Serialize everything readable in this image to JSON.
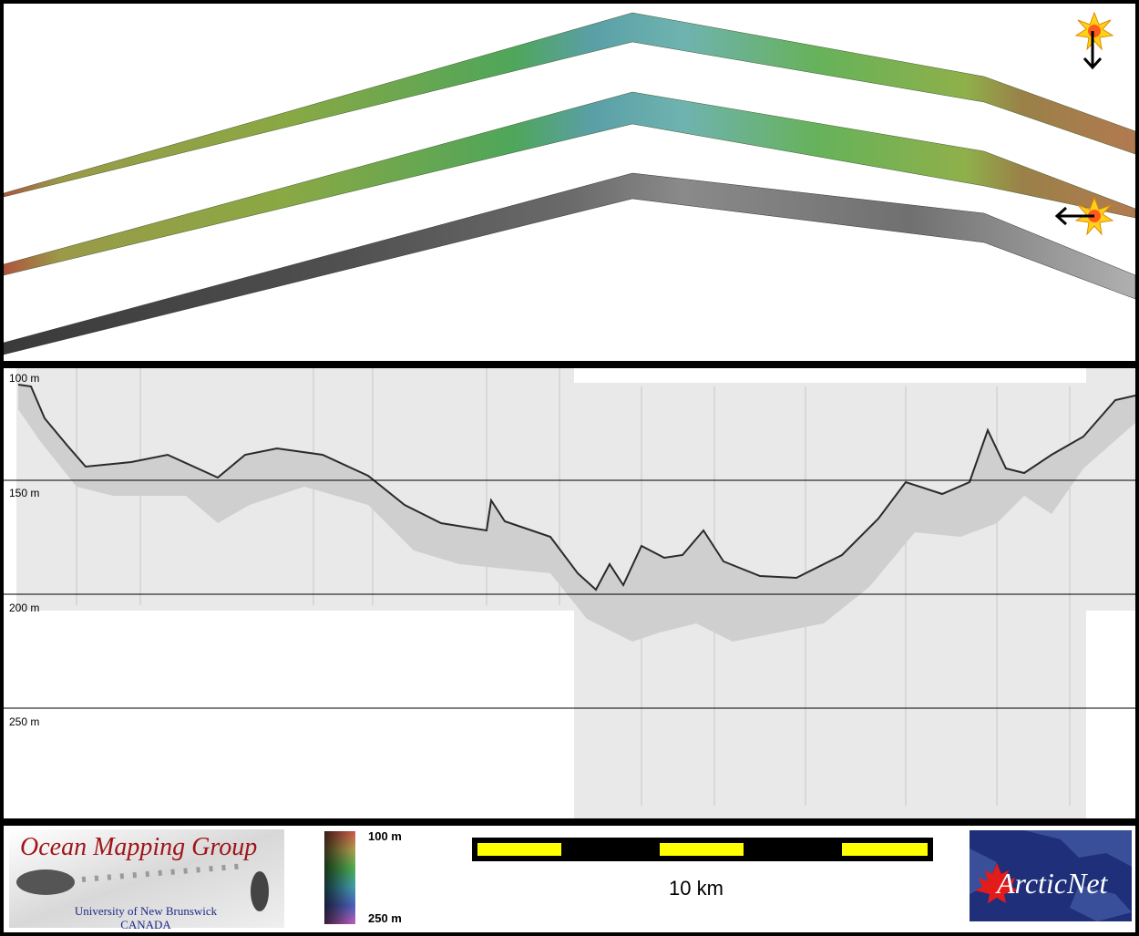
{
  "profile": {
    "depth_labels": [
      "100 m",
      "150 m",
      "200 m",
      "250 m"
    ]
  },
  "footer": {
    "omg": {
      "title": "Ocean Mapping Group",
      "line1": "University of New Brunswick",
      "line2": "CANADA"
    },
    "colorbar": {
      "top_label": "100 m",
      "bottom_label": "250 m"
    },
    "scale_bar": {
      "label": "10 km",
      "colors": [
        "#ffff00",
        "#000000"
      ]
    },
    "arcticnet": {
      "label": "ArcticNet",
      "leaf_color": "#e21b1b"
    }
  },
  "icons": [
    "sun-icon-north",
    "sun-icon-west",
    "arrow-down-icon",
    "arrow-left-icon"
  ]
}
